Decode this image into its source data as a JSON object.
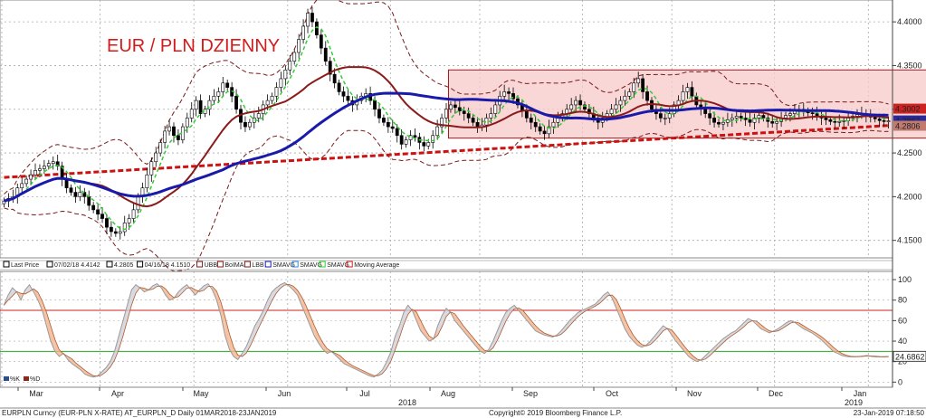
{
  "chart_data": [
    {
      "type": "candlestick",
      "title": "EUR / PLN DZIENNY",
      "ylim": [
        4.13,
        4.425
      ],
      "y_ticks": [
        "4.1500",
        "4.2000",
        "4.2500",
        "4.3000",
        "4.3500",
        "4.4000"
      ],
      "price_tags": [
        {
          "value": 4.3002,
          "label": "4.3002",
          "color": "#cc2222"
        },
        {
          "value": 4.2867,
          "label": "4.2867",
          "color": "#2a2a9a"
        },
        {
          "value": 4.2806,
          "label": "4.2806",
          "color": "#c07a70"
        }
      ],
      "shaded_range": {
        "from_index": 100,
        "to_index": 224,
        "low": 4.267,
        "high": 4.345,
        "color": "#f7c9c9"
      },
      "close": [
        4.195,
        4.198,
        4.2,
        4.21,
        4.215,
        4.22,
        4.225,
        4.23,
        4.232,
        4.235,
        4.238,
        4.24,
        4.235,
        4.22,
        4.21,
        4.205,
        4.2,
        4.205,
        4.2,
        4.19,
        4.185,
        4.18,
        4.175,
        4.165,
        4.16,
        4.158,
        4.16,
        4.17,
        4.175,
        4.185,
        4.2,
        4.21,
        4.225,
        4.24,
        4.25,
        4.262,
        4.275,
        4.28,
        4.27,
        4.265,
        4.28,
        4.29,
        4.3,
        4.31,
        4.295,
        4.3,
        4.31,
        4.315,
        4.32,
        4.33,
        4.325,
        4.315,
        4.3,
        4.285,
        4.28,
        4.285,
        4.29,
        4.295,
        4.305,
        4.31,
        4.315,
        4.325,
        4.335,
        4.345,
        4.355,
        4.365,
        4.38,
        4.395,
        4.41,
        4.4,
        4.385,
        4.37,
        4.355,
        4.34,
        4.33,
        4.32,
        4.315,
        4.31,
        4.305,
        4.31,
        4.315,
        4.318,
        4.31,
        4.3,
        4.29,
        4.285,
        4.28,
        4.278,
        4.27,
        4.26,
        4.265,
        4.27,
        4.268,
        4.262,
        4.258,
        4.262,
        4.27,
        4.28,
        4.29,
        4.3,
        4.305,
        4.302,
        4.298,
        4.295,
        4.29,
        4.285,
        4.28,
        4.282,
        4.29,
        4.295,
        4.305,
        4.315,
        4.32,
        4.318,
        4.312,
        4.305,
        4.298,
        4.29,
        4.285,
        4.28,
        4.275,
        4.272,
        4.28,
        4.285,
        4.29,
        4.295,
        4.3,
        4.305,
        4.31,
        4.305,
        4.3,
        4.295,
        4.29,
        4.285,
        4.29,
        4.295,
        4.3,
        4.305,
        4.31,
        4.315,
        4.32,
        4.33,
        4.335,
        4.32,
        4.31,
        4.3,
        4.295,
        4.29,
        4.29,
        4.295,
        4.305,
        4.31,
        4.32,
        4.325,
        4.315,
        4.305,
        4.3,
        4.295,
        4.29,
        4.285,
        4.283,
        4.285,
        4.288,
        4.29,
        4.292,
        4.29,
        4.288,
        4.285,
        4.29,
        4.293,
        4.29,
        4.286,
        4.284,
        4.286,
        4.29,
        4.293,
        4.295,
        4.298,
        4.3,
        4.298,
        4.296,
        4.295,
        4.292,
        4.29,
        4.288,
        4.286,
        4.285,
        4.286,
        4.287,
        4.29,
        4.292,
        4.294,
        4.295,
        4.293,
        4.291,
        4.289,
        4.287,
        4.286,
        4.2867
      ],
      "series_names": [
        "Last Price",
        "UBB",
        "BoIMA",
        "LBB",
        "SMAVG",
        "SMAVG",
        "SMAVG",
        "Moving Average"
      ]
    },
    {
      "type": "line",
      "title": "",
      "ylim": [
        -5,
        108
      ],
      "y_ticks": [
        "0",
        "20",
        "40",
        "60",
        "80",
        "100"
      ],
      "ref_lines": [
        {
          "value": 70,
          "color": "#cc2222"
        },
        {
          "value": 30,
          "color": "#22aa22"
        }
      ],
      "price_tags": [
        {
          "value": 24.6862,
          "label": "24.6862"
        }
      ],
      "series_names": [
        "%K",
        "%D"
      ],
      "k": [
        75,
        85,
        92,
        88,
        80,
        90,
        95,
        88,
        80,
        70,
        55,
        40,
        30,
        25,
        28,
        22,
        18,
        15,
        12,
        8,
        6,
        5,
        6,
        10,
        14,
        20,
        30,
        45,
        60,
        75,
        90,
        95,
        92,
        88,
        90,
        94,
        96,
        92,
        85,
        80,
        82,
        88,
        92,
        95,
        90,
        85,
        90,
        94,
        96,
        90,
        80,
        65,
        45,
        32,
        25,
        22,
        28,
        35,
        45,
        55,
        62,
        70,
        80,
        88,
        92,
        95,
        97,
        94,
        90,
        85,
        75,
        65,
        55,
        45,
        38,
        32,
        28,
        30,
        26,
        22,
        18,
        16,
        14,
        12,
        10,
        8,
        6,
        5,
        8,
        12,
        20,
        30,
        45,
        55,
        68,
        75,
        70,
        60,
        50,
        45,
        40,
        42,
        55,
        65,
        72,
        68,
        60,
        55,
        50,
        45,
        40,
        35,
        30,
        28,
        32,
        40,
        50,
        60,
        68,
        72,
        75,
        70,
        65,
        60,
        55,
        50,
        48,
        46,
        45,
        44,
        46,
        50,
        55,
        60,
        64,
        68,
        70,
        72,
        74,
        76,
        80,
        85,
        88,
        82,
        72,
        62,
        52,
        45,
        40,
        36,
        34,
        36,
        40,
        45,
        50,
        55,
        52,
        46,
        40,
        35,
        30,
        25,
        22,
        20,
        22,
        26,
        30,
        34,
        38,
        42,
        45,
        48,
        50,
        54,
        58,
        62,
        60,
        56,
        52,
        50,
        48,
        50,
        52,
        55,
        58,
        60,
        58,
        55,
        52,
        50,
        48,
        45,
        42,
        38,
        34,
        30,
        28,
        26,
        25,
        24.6862,
        24.8,
        25,
        25.5,
        26,
        25,
        24.6862,
        24.7,
        24.8,
        25
      ]
    }
  ],
  "x_axis": {
    "months": [
      "Mar",
      "Apr",
      "May",
      "Jun",
      "Jul",
      "Aug",
      "Sep",
      "Oct",
      "Nov",
      "Dec",
      "Jan"
    ],
    "year_labels": [
      "2018",
      "2019"
    ]
  },
  "legend": {
    "items": [
      "Last Price",
      "07/02/18 4.4142",
      "4.2805",
      "04/16/18 4.1510",
      "UBB",
      "BoIMA",
      "LBB",
      "SMAVG",
      "SMAVG",
      "SMAVG",
      "Moving Average"
    ]
  },
  "lower_legend": {
    "k": "%K",
    "d": "%D"
  },
  "footer": {
    "left": "EURPLN Curncy (EUR-PLN X-RATE) AT_EURPLN_D  Daily 01MAR2018-23JAN2019",
    "center": "Copyright© 2019 Bloomberg Finance L.P.",
    "right": "23-Jan-2019 07:18:50"
  },
  "colors": {
    "candle": "#000000",
    "sma_fast": "#33cc33",
    "sma_mid": "#8b1a1a",
    "sma_slow": "#1a1aaa",
    "sma_long": "#cc1111",
    "band": "#7a1a1a",
    "stoch_k": "#9a9a9a",
    "stoch_d": "#e0a080"
  }
}
